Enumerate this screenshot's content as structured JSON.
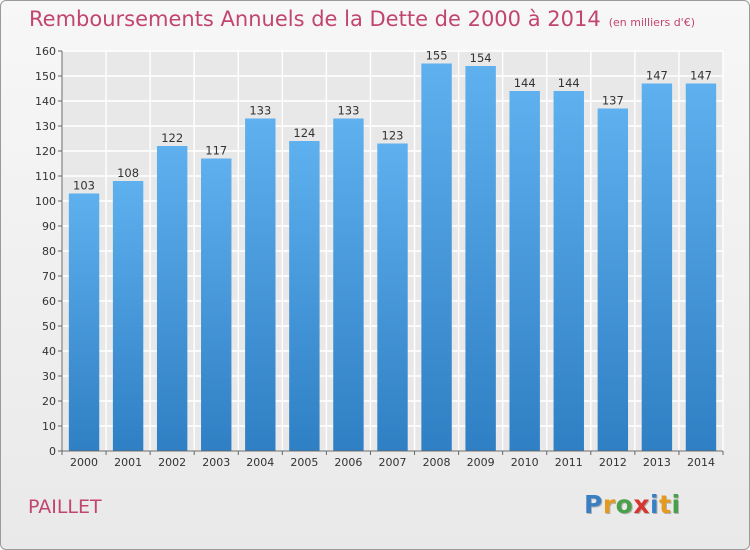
{
  "header": {
    "title": "Remboursements Annuels de la Dette de 2000 à 2014",
    "unit": "(en milliers d'€)"
  },
  "location": "PAILLET",
  "logo": {
    "letters": [
      "P",
      "r",
      "o",
      "x",
      "i",
      "t",
      "i"
    ],
    "colors": [
      "#3a7fc4",
      "#e39a1e",
      "#4aa04a",
      "#d7352f",
      "#3a7fc4",
      "#e39a1e",
      "#4aa04a"
    ]
  },
  "chart_data": {
    "type": "bar",
    "categories": [
      "2000",
      "2001",
      "2002",
      "2003",
      "2004",
      "2005",
      "2006",
      "2007",
      "2008",
      "2009",
      "2010",
      "2011",
      "2012",
      "2013",
      "2014"
    ],
    "values": [
      103,
      108,
      122,
      117,
      133,
      124,
      133,
      123,
      155,
      154,
      144,
      144,
      137,
      147,
      147
    ],
    "title": "Remboursements Annuels de la Dette de 2000 à 2014",
    "subtitle": "(en milliers d'€)",
    "xlabel": "",
    "ylabel": "",
    "ylim": [
      0,
      160
    ],
    "ytick_step": 10,
    "grid": true,
    "legend": "none",
    "bar_color": "#5aa9e6"
  }
}
